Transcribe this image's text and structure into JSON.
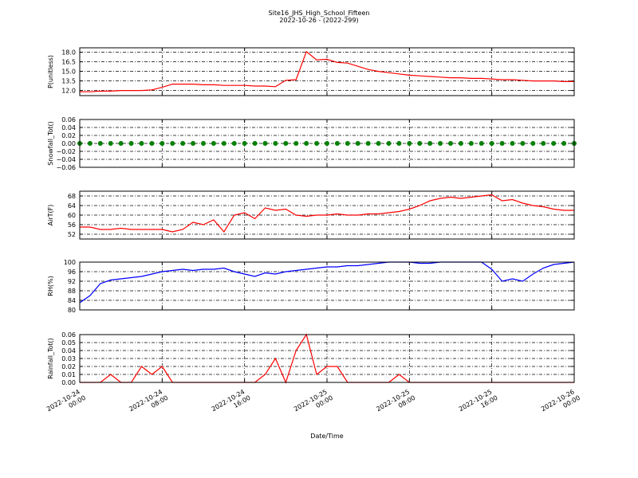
{
  "chart_data": [
    {
      "type": "line",
      "title": "Site16_JHS_High_School_Fifteen",
      "subtitle": "2022-10-26 - (2022-299)",
      "ylabel": "P(unitless)",
      "x": [
        "2022-10-24 00:00",
        "2022-10-24 01:00",
        "2022-10-24 02:00",
        "2022-10-24 03:00",
        "2022-10-24 04:00",
        "2022-10-24 05:00",
        "2022-10-24 06:00",
        "2022-10-24 07:00",
        "2022-10-24 08:00",
        "2022-10-24 09:00",
        "2022-10-24 10:00",
        "2022-10-24 11:00",
        "2022-10-24 12:00",
        "2022-10-24 13:00",
        "2022-10-24 14:00",
        "2022-10-24 15:00",
        "2022-10-24 16:00",
        "2022-10-24 17:00",
        "2022-10-24 18:00",
        "2022-10-24 19:00",
        "2022-10-24 20:00",
        "2022-10-24 21:00",
        "2022-10-24 22:00",
        "2022-10-24 23:00",
        "2022-10-25 00:00",
        "2022-10-25 01:00",
        "2022-10-25 02:00",
        "2022-10-25 03:00",
        "2022-10-25 04:00",
        "2022-10-25 05:00",
        "2022-10-25 06:00",
        "2022-10-25 07:00",
        "2022-10-25 08:00",
        "2022-10-25 09:00",
        "2022-10-25 10:00",
        "2022-10-25 11:00",
        "2022-10-25 12:00",
        "2022-10-25 13:00",
        "2022-10-25 14:00",
        "2022-10-25 15:00",
        "2022-10-25 16:00",
        "2022-10-25 17:00",
        "2022-10-25 18:00",
        "2022-10-25 19:00",
        "2022-10-25 20:00",
        "2022-10-25 21:00",
        "2022-10-25 22:00",
        "2022-10-25 23:00",
        "2022-10-26 00:00"
      ],
      "series": [
        {
          "color": "#ff0000",
          "values": [
            11.8,
            11.8,
            11.9,
            11.9,
            12.0,
            12.0,
            12.0,
            12.1,
            12.5,
            13.0,
            13.0,
            13.0,
            12.9,
            12.9,
            12.8,
            12.8,
            12.8,
            12.7,
            12.7,
            12.6,
            13.6,
            13.7,
            18.1,
            16.8,
            16.9,
            16.4,
            16.3,
            15.8,
            15.3,
            15.0,
            14.8,
            14.6,
            14.4,
            14.3,
            14.2,
            14.1,
            14.0,
            14.0,
            13.9,
            13.9,
            13.8,
            13.7,
            13.7,
            13.6,
            13.5,
            13.5,
            13.5,
            13.4,
            13.4
          ]
        }
      ],
      "xlim": [
        "2022-10-24 00:00",
        "2022-10-26 00:00"
      ],
      "ylim": [
        11.2,
        18.7
      ],
      "yticks": [
        {
          "value": 12,
          "label": "12.0"
        },
        {
          "value": 13.5,
          "label": "13.5"
        },
        {
          "value": 15,
          "label": "15.0"
        },
        {
          "value": 16.5,
          "label": "16.5"
        },
        {
          "value": 18,
          "label": "18.0"
        }
      ],
      "grid": true
    },
    {
      "type": "scatter",
      "ylabel": "Snowfall_Tot()",
      "x": [
        "2022-10-24 00:00",
        "2022-10-24 01:00",
        "2022-10-24 02:00",
        "2022-10-24 03:00",
        "2022-10-24 04:00",
        "2022-10-24 05:00",
        "2022-10-24 06:00",
        "2022-10-24 07:00",
        "2022-10-24 08:00",
        "2022-10-24 09:00",
        "2022-10-24 10:00",
        "2022-10-24 11:00",
        "2022-10-24 12:00",
        "2022-10-24 13:00",
        "2022-10-24 14:00",
        "2022-10-24 15:00",
        "2022-10-24 16:00",
        "2022-10-24 17:00",
        "2022-10-24 18:00",
        "2022-10-24 19:00",
        "2022-10-24 20:00",
        "2022-10-24 21:00",
        "2022-10-24 22:00",
        "2022-10-24 23:00",
        "2022-10-25 00:00",
        "2022-10-25 01:00",
        "2022-10-25 02:00",
        "2022-10-25 03:00",
        "2022-10-25 04:00",
        "2022-10-25 05:00",
        "2022-10-25 06:00",
        "2022-10-25 07:00",
        "2022-10-25 08:00",
        "2022-10-25 09:00",
        "2022-10-25 10:00",
        "2022-10-25 11:00",
        "2022-10-25 12:00",
        "2022-10-25 13:00",
        "2022-10-25 14:00",
        "2022-10-25 15:00",
        "2022-10-25 16:00",
        "2022-10-25 17:00",
        "2022-10-25 18:00",
        "2022-10-25 19:00",
        "2022-10-25 20:00",
        "2022-10-25 21:00",
        "2022-10-25 22:00",
        "2022-10-25 23:00",
        "2022-10-26 00:00"
      ],
      "series": [
        {
          "color": "#008000",
          "values": [
            0,
            0,
            0,
            0,
            0,
            0,
            0,
            0,
            0,
            0,
            0,
            0,
            0,
            0,
            0,
            0,
            0,
            0,
            0,
            0,
            0,
            0,
            0,
            0,
            0,
            0,
            0,
            0,
            0,
            0,
            0,
            0,
            0,
            0,
            0,
            0,
            0,
            0,
            0,
            0,
            0,
            0,
            0,
            0,
            0,
            0,
            0,
            0,
            0
          ]
        }
      ],
      "xlim": [
        "2022-10-24 00:00",
        "2022-10-26 00:00"
      ],
      "ylim": [
        -0.06,
        0.06
      ],
      "yticks": [
        {
          "value": -0.06,
          "label": "−0.06"
        },
        {
          "value": -0.04,
          "label": "−0.04"
        },
        {
          "value": -0.02,
          "label": "−0.02"
        },
        {
          "value": 0,
          "label": "0.00"
        },
        {
          "value": 0.02,
          "label": "0.02"
        },
        {
          "value": 0.04,
          "label": "0.04"
        },
        {
          "value": 0.06,
          "label": "0.06"
        }
      ],
      "grid": true
    },
    {
      "type": "line",
      "ylabel": "AirT(F)",
      "x": [
        "2022-10-24 00:00",
        "2022-10-24 01:00",
        "2022-10-24 02:00",
        "2022-10-24 03:00",
        "2022-10-24 04:00",
        "2022-10-24 05:00",
        "2022-10-24 06:00",
        "2022-10-24 07:00",
        "2022-10-24 08:00",
        "2022-10-24 09:00",
        "2022-10-24 10:00",
        "2022-10-24 11:00",
        "2022-10-24 12:00",
        "2022-10-24 13:00",
        "2022-10-24 14:00",
        "2022-10-24 15:00",
        "2022-10-24 16:00",
        "2022-10-24 17:00",
        "2022-10-24 18:00",
        "2022-10-24 19:00",
        "2022-10-24 20:00",
        "2022-10-24 21:00",
        "2022-10-24 22:00",
        "2022-10-24 23:00",
        "2022-10-25 00:00",
        "2022-10-25 01:00",
        "2022-10-25 02:00",
        "2022-10-25 03:00",
        "2022-10-25 04:00",
        "2022-10-25 05:00",
        "2022-10-25 06:00",
        "2022-10-25 07:00",
        "2022-10-25 08:00",
        "2022-10-25 09:00",
        "2022-10-25 10:00",
        "2022-10-25 11:00",
        "2022-10-25 12:00",
        "2022-10-25 13:00",
        "2022-10-25 14:00",
        "2022-10-25 15:00",
        "2022-10-25 16:00",
        "2022-10-25 17:00",
        "2022-10-25 18:00",
        "2022-10-25 19:00",
        "2022-10-25 20:00",
        "2022-10-25 21:00",
        "2022-10-25 22:00",
        "2022-10-25 23:00",
        "2022-10-26 00:00"
      ],
      "series": [
        {
          "color": "#ff0000",
          "values": [
            55,
            55,
            54,
            54,
            54.5,
            54,
            54,
            54,
            54,
            53,
            54,
            57,
            56,
            58,
            53,
            60,
            61,
            58.5,
            63,
            62,
            62.5,
            60,
            59.5,
            60,
            60,
            60.5,
            60,
            60,
            60.5,
            60.5,
            61,
            61.5,
            62.5,
            64,
            66,
            67,
            67.5,
            67,
            67.5,
            68,
            68.5,
            66,
            66.5,
            65,
            64,
            63.5,
            62.5,
            62,
            62
          ]
        }
      ],
      "xlim": [
        "2022-10-24 00:00",
        "2022-10-26 00:00"
      ],
      "ylim": [
        50,
        70
      ],
      "yticks": [
        52,
        56,
        60,
        64,
        68
      ],
      "grid": true
    },
    {
      "type": "line",
      "ylabel": "RH(%)",
      "x": [
        "2022-10-24 00:00",
        "2022-10-24 01:00",
        "2022-10-24 02:00",
        "2022-10-24 03:00",
        "2022-10-24 04:00",
        "2022-10-24 05:00",
        "2022-10-24 06:00",
        "2022-10-24 07:00",
        "2022-10-24 08:00",
        "2022-10-24 09:00",
        "2022-10-24 10:00",
        "2022-10-24 11:00",
        "2022-10-24 12:00",
        "2022-10-24 13:00",
        "2022-10-24 14:00",
        "2022-10-24 15:00",
        "2022-10-24 16:00",
        "2022-10-24 17:00",
        "2022-10-24 18:00",
        "2022-10-24 19:00",
        "2022-10-24 20:00",
        "2022-10-24 21:00",
        "2022-10-24 22:00",
        "2022-10-24 23:00",
        "2022-10-25 00:00",
        "2022-10-25 01:00",
        "2022-10-25 02:00",
        "2022-10-25 03:00",
        "2022-10-25 04:00",
        "2022-10-25 05:00",
        "2022-10-25 06:00",
        "2022-10-25 07:00",
        "2022-10-25 08:00",
        "2022-10-25 09:00",
        "2022-10-25 10:00",
        "2022-10-25 11:00",
        "2022-10-25 12:00",
        "2022-10-25 13:00",
        "2022-10-25 14:00",
        "2022-10-25 15:00",
        "2022-10-25 16:00",
        "2022-10-25 17:00",
        "2022-10-25 18:00",
        "2022-10-25 19:00",
        "2022-10-25 20:00",
        "2022-10-25 21:00",
        "2022-10-25 22:00",
        "2022-10-25 23:00",
        "2022-10-26 00:00"
      ],
      "series": [
        {
          "color": "#0000ff",
          "values": [
            83,
            86,
            91,
            92.5,
            93,
            93.5,
            94,
            95,
            96,
            96.5,
            97,
            96.5,
            97,
            97,
            97.5,
            96,
            95,
            94,
            95.5,
            95,
            96,
            96.5,
            97,
            97.5,
            98,
            98,
            98.5,
            98.5,
            99,
            99.5,
            100,
            100,
            100,
            99.5,
            99.5,
            100,
            100,
            100,
            100,
            100,
            97,
            92,
            93,
            92,
            95,
            97.5,
            99,
            99.5,
            100
          ]
        }
      ],
      "xlim": [
        "2022-10-24 00:00",
        "2022-10-26 00:00"
      ],
      "ylim": [
        80,
        100
      ],
      "yticks": [
        80,
        84,
        88,
        92,
        96,
        100
      ],
      "grid": true
    },
    {
      "type": "line",
      "ylabel": "Rainfall_Tot()",
      "xlabel": "Date/Time",
      "x": [
        "2022-10-24 00:00",
        "2022-10-24 01:00",
        "2022-10-24 02:00",
        "2022-10-24 03:00",
        "2022-10-24 04:00",
        "2022-10-24 05:00",
        "2022-10-24 06:00",
        "2022-10-24 07:00",
        "2022-10-24 08:00",
        "2022-10-24 09:00",
        "2022-10-24 10:00",
        "2022-10-24 11:00",
        "2022-10-24 12:00",
        "2022-10-24 13:00",
        "2022-10-24 14:00",
        "2022-10-24 15:00",
        "2022-10-24 16:00",
        "2022-10-24 17:00",
        "2022-10-24 18:00",
        "2022-10-24 19:00",
        "2022-10-24 20:00",
        "2022-10-24 21:00",
        "2022-10-24 22:00",
        "2022-10-24 23:00",
        "2022-10-25 00:00",
        "2022-10-25 01:00",
        "2022-10-25 02:00",
        "2022-10-25 03:00",
        "2022-10-25 04:00",
        "2022-10-25 05:00",
        "2022-10-25 06:00",
        "2022-10-25 07:00",
        "2022-10-25 08:00",
        "2022-10-25 09:00",
        "2022-10-25 10:00",
        "2022-10-25 11:00",
        "2022-10-25 12:00",
        "2022-10-25 13:00",
        "2022-10-25 14:00",
        "2022-10-25 15:00",
        "2022-10-25 16:00",
        "2022-10-25 17:00",
        "2022-10-25 18:00",
        "2022-10-25 19:00",
        "2022-10-25 20:00",
        "2022-10-25 21:00",
        "2022-10-25 22:00",
        "2022-10-25 23:00",
        "2022-10-26 00:00"
      ],
      "series": [
        {
          "color": "#ff0000",
          "values": [
            0,
            0,
            0,
            0.01,
            0,
            0,
            0.02,
            0.01,
            0.02,
            0,
            0,
            0,
            0,
            0,
            0,
            0,
            0,
            0,
            0.01,
            0.03,
            0,
            0.04,
            0.06,
            0.01,
            0.02,
            0.02,
            0,
            0,
            0,
            0,
            0,
            0.01,
            0,
            0,
            0,
            0,
            0,
            0,
            0,
            0,
            0,
            0,
            0,
            0,
            0,
            0,
            0,
            0,
            0
          ]
        }
      ],
      "xlim": [
        "2022-10-24 00:00",
        "2022-10-26 00:00"
      ],
      "ylim": [
        0,
        0.06
      ],
      "xticks": [
        "2022-10-24 00:00",
        "2022-10-24 08:00",
        "2022-10-24 16:00",
        "2022-10-25 00:00",
        "2022-10-25 08:00",
        "2022-10-25 16:00",
        "2022-10-26 00:00"
      ],
      "yticks": [
        {
          "value": 0,
          "label": "0.00"
        },
        {
          "value": 0.01,
          "label": "0.01"
        },
        {
          "value": 0.02,
          "label": "0.02"
        },
        {
          "value": 0.03,
          "label": "0.03"
        },
        {
          "value": 0.04,
          "label": "0.04"
        },
        {
          "value": 0.05,
          "label": "0.05"
        },
        {
          "value": 0.06,
          "label": "0.06"
        }
      ],
      "grid": true
    }
  ]
}
